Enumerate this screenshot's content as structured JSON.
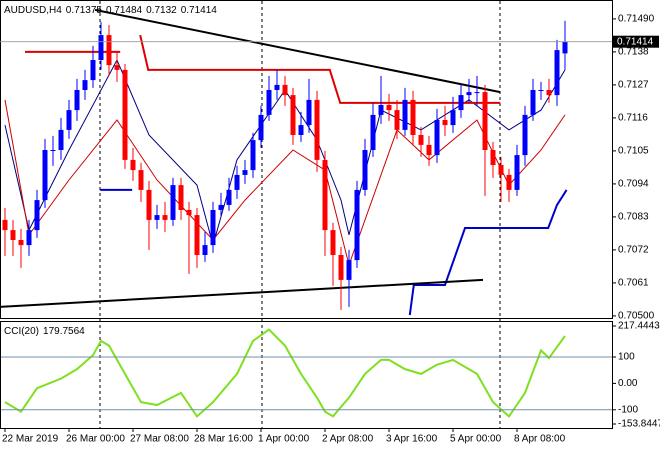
{
  "chart_data": {
    "type": "candlestick",
    "title": "AUDUSD,H4",
    "bull_color": "#0000ff",
    "bear_color": "#ff0000",
    "open": [
      0.7082,
      0.70786,
      0.70753,
      0.70736,
      0.70786,
      0.70886,
      0.71053,
      0.71053,
      0.7112,
      0.71186,
      0.71253,
      0.71286,
      0.71353,
      0.71436,
      0.71336,
      0.7132,
      0.7102,
      0.70986,
      0.7092,
      0.7082,
      0.70836,
      0.7082,
      0.70936,
      0.70853,
      0.70836,
      0.70703,
      0.70736,
      0.70853,
      0.7087,
      0.7092,
      0.7097,
      0.70986,
      0.71086,
      0.7117,
      0.71253,
      0.7127,
      0.71236,
      0.71103,
      0.71136,
      0.7122,
      0.7102,
      0.70786,
      0.70703,
      0.7062,
      0.70686,
      0.7092,
      0.71053,
      0.7117,
      0.71203,
      0.71186,
      0.7112,
      0.7122,
      0.71103,
      0.7107,
      0.71036,
      0.71153,
      0.71136,
      0.71186,
      0.71236,
      0.71246,
      0.71246,
      0.71053,
      0.71003,
      0.7097,
      0.7092,
      0.71036,
      0.7117,
      0.71253,
      0.71253,
      0.71236,
      0.71375
    ],
    "high": [
      0.7086,
      0.7082,
      0.7079,
      0.7082,
      0.7092,
      0.7109,
      0.711,
      0.7116,
      0.7122,
      0.7129,
      0.7132,
      0.714,
      0.7148,
      0.7147,
      0.7138,
      0.7134,
      0.7106,
      0.7101,
      0.7095,
      0.7087,
      0.7088,
      0.7096,
      0.7096,
      0.7088,
      0.7086,
      0.7078,
      0.7088,
      0.7091,
      0.7096,
      0.71,
      0.7102,
      0.7111,
      0.712,
      0.713,
      0.7132,
      0.713,
      0.7126,
      0.7118,
      0.7129,
      0.7125,
      0.7105,
      0.7081,
      0.7073,
      0.7072,
      0.7095,
      0.7109,
      0.7121,
      0.713,
      0.7124,
      0.7122,
      0.7126,
      0.7125,
      0.7113,
      0.711,
      0.7119,
      0.712,
      0.7123,
      0.7127,
      0.7129,
      0.713,
      0.7127,
      0.7108,
      0.7103,
      0.7099,
      0.7107,
      0.712,
      0.7129,
      0.7128,
      0.7129,
      0.7142,
      0.71484
    ],
    "low": [
      0.707,
      0.707,
      0.7066,
      0.707,
      0.7076,
      0.7086,
      0.71,
      0.7102,
      0.7109,
      0.7115,
      0.7122,
      0.7126,
      0.7132,
      0.713,
      0.7128,
      0.7099,
      0.7095,
      0.7088,
      0.7072,
      0.7079,
      0.7078,
      0.708,
      0.7082,
      0.7064,
      0.7066,
      0.7068,
      0.7071,
      0.7083,
      0.7085,
      0.7089,
      0.7094,
      0.7096,
      0.7106,
      0.7115,
      0.7122,
      0.712,
      0.7107,
      0.7108,
      0.7111,
      0.7098,
      0.707,
      0.706,
      0.7052,
      0.7053,
      0.7066,
      0.709,
      0.7103,
      0.7114,
      0.7115,
      0.7109,
      0.711,
      0.7107,
      0.7103,
      0.71,
      0.7101,
      0.711,
      0.7111,
      0.7116,
      0.7121,
      0.712,
      0.709,
      0.7096,
      0.7088,
      0.7088,
      0.709,
      0.71,
      0.7115,
      0.7122,
      0.7121,
      0.712,
      0.7132
    ],
    "close": [
      0.70786,
      0.70753,
      0.70736,
      0.70786,
      0.70886,
      0.71053,
      0.71053,
      0.7112,
      0.71186,
      0.71253,
      0.71286,
      0.71353,
      0.71436,
      0.71336,
      0.7132,
      0.7102,
      0.70986,
      0.7092,
      0.7082,
      0.70836,
      0.7082,
      0.70936,
      0.70853,
      0.70836,
      0.70703,
      0.70736,
      0.70853,
      0.7087,
      0.7092,
      0.7097,
      0.70986,
      0.71086,
      0.7117,
      0.71253,
      0.7127,
      0.71236,
      0.71103,
      0.71136,
      0.7122,
      0.7102,
      0.70786,
      0.70703,
      0.7062,
      0.70686,
      0.7092,
      0.71053,
      0.7117,
      0.71203,
      0.71186,
      0.7112,
      0.7122,
      0.71103,
      0.7107,
      0.71036,
      0.71153,
      0.71136,
      0.71186,
      0.71236,
      0.71246,
      0.71246,
      0.71053,
      0.71003,
      0.7097,
      0.7092,
      0.71036,
      0.7117,
      0.71253,
      0.71253,
      0.71236,
      0.71386,
      0.71414
    ],
    "xlim": [
      -0.625,
      75.875
    ],
    "xticks": [
      {
        "value": 0,
        "label": "22 Mar 2019"
      },
      {
        "value": 8,
        "label": "26 Mar 00:00"
      },
      {
        "value": 16,
        "label": "27 Mar 08:00"
      },
      {
        "value": 24,
        "label": "28 Mar 16:00"
      },
      {
        "value": 32,
        "label": "1 Apr 00:00"
      },
      {
        "value": 40,
        "label": "2 Apr 08:00"
      },
      {
        "value": 48,
        "label": "3 Apr 16:00"
      },
      {
        "value": 56,
        "label": "5 Apr 00:00"
      },
      {
        "value": 64,
        "label": "8 Apr 08:00"
      }
    ],
    "ylim": [
      0.70493,
      0.71553
    ],
    "yticks": [
      {
        "value": 0.7149,
        "label": "0.71490"
      },
      0.7138,
      0.7127,
      0.7116,
      0.7105,
      0.7094,
      0.7083,
      0.7072,
      0.7061,
      {
        "value": 0.705,
        "label": "0.70500"
      }
    ],
    "lines": [
      {
        "color": "#000080",
        "width": 1,
        "x": [
          0,
          3,
          8,
          14,
          18,
          24,
          26,
          29,
          35,
          39,
          42,
          43,
          47,
          52,
          58,
          63,
          67,
          70
        ],
        "values": [
          0.71136,
          0.70786,
          0.71053,
          0.71353,
          0.71103,
          0.70936,
          0.70736,
          0.7102,
          0.71253,
          0.71086,
          0.70886,
          0.7077,
          0.71186,
          0.7112,
          0.7122,
          0.7112,
          0.71186,
          0.7132
        ]
      },
      {
        "color": "#cc0000",
        "width": 1,
        "x": [
          0,
          3,
          8,
          14,
          19,
          26,
          30,
          36,
          40,
          43,
          49,
          53,
          59,
          63,
          67,
          70
        ],
        "values": [
          0.7122,
          0.7077,
          0.70953,
          0.71153,
          0.70953,
          0.70753,
          0.70886,
          0.71053,
          0.70986,
          0.7067,
          0.7112,
          0.7102,
          0.71153,
          0.70936,
          0.71053,
          0.7117
        ]
      },
      {
        "color": "#dd0000",
        "width": 2,
        "x": [
          2.5,
          14.4,
          15.5,
          16.9,
          17.9,
          40.6,
          41.9,
          61.9
        ],
        "values": [
          0.7138,
          0.7138,
          null,
          0.71436,
          0.7132,
          0.7132,
          0.7121,
          0.7121
        ]
      },
      {
        "color": "#0000cc",
        "width": 2,
        "x": [
          11.9,
          15.9,
          30,
          50.6,
          51.1,
          55.0,
          57.5,
          67.9,
          69.0,
          70.2
        ],
        "values": [
          0.7092,
          0.7092,
          null,
          0.70503,
          0.70603,
          0.70603,
          0.70793,
          0.70793,
          0.7087,
          0.7092
        ]
      },
      {
        "color": "#000000",
        "width": 2,
        "x": [
          -0.625,
          59.75
        ],
        "values": [
          0.7053,
          0.7062
        ]
      },
      {
        "color": "#000000",
        "width": 2,
        "x": [
          11.25,
          61.9
        ],
        "values": [
          0.7152,
          0.71246
        ]
      }
    ],
    "cci": {
      "title": "CCI(20)",
      "color": "#7fe020",
      "x": [
        0,
        2,
        4,
        7,
        9,
        11,
        12,
        13,
        15,
        17,
        19,
        22,
        24,
        26,
        29,
        31,
        33,
        35,
        37,
        39,
        40,
        41,
        42,
        43,
        45,
        47,
        48,
        50,
        52,
        54,
        56,
        59,
        61,
        63,
        65,
        67,
        68,
        70
      ],
      "values": [
        -71,
        -107,
        -18,
        18,
        54,
        107,
        161,
        143,
        36,
        -71,
        -82,
        -36,
        -125,
        -71,
        36,
        161,
        204,
        143,
        36,
        -54,
        -107,
        -125,
        -89,
        -54,
        36,
        89,
        89,
        54,
        36,
        71,
        89,
        36,
        -71,
        -125,
        -36,
        125,
        96,
        179.7564
      ],
      "ylim": [
        -153.8447,
        217.4443
      ],
      "yticks": [
        217.4443,
        100,
        {
          "value": 0,
          "label": "0.00"
        },
        -100,
        -153.8447
      ],
      "levels": [
        100,
        -100
      ]
    }
  }
}
